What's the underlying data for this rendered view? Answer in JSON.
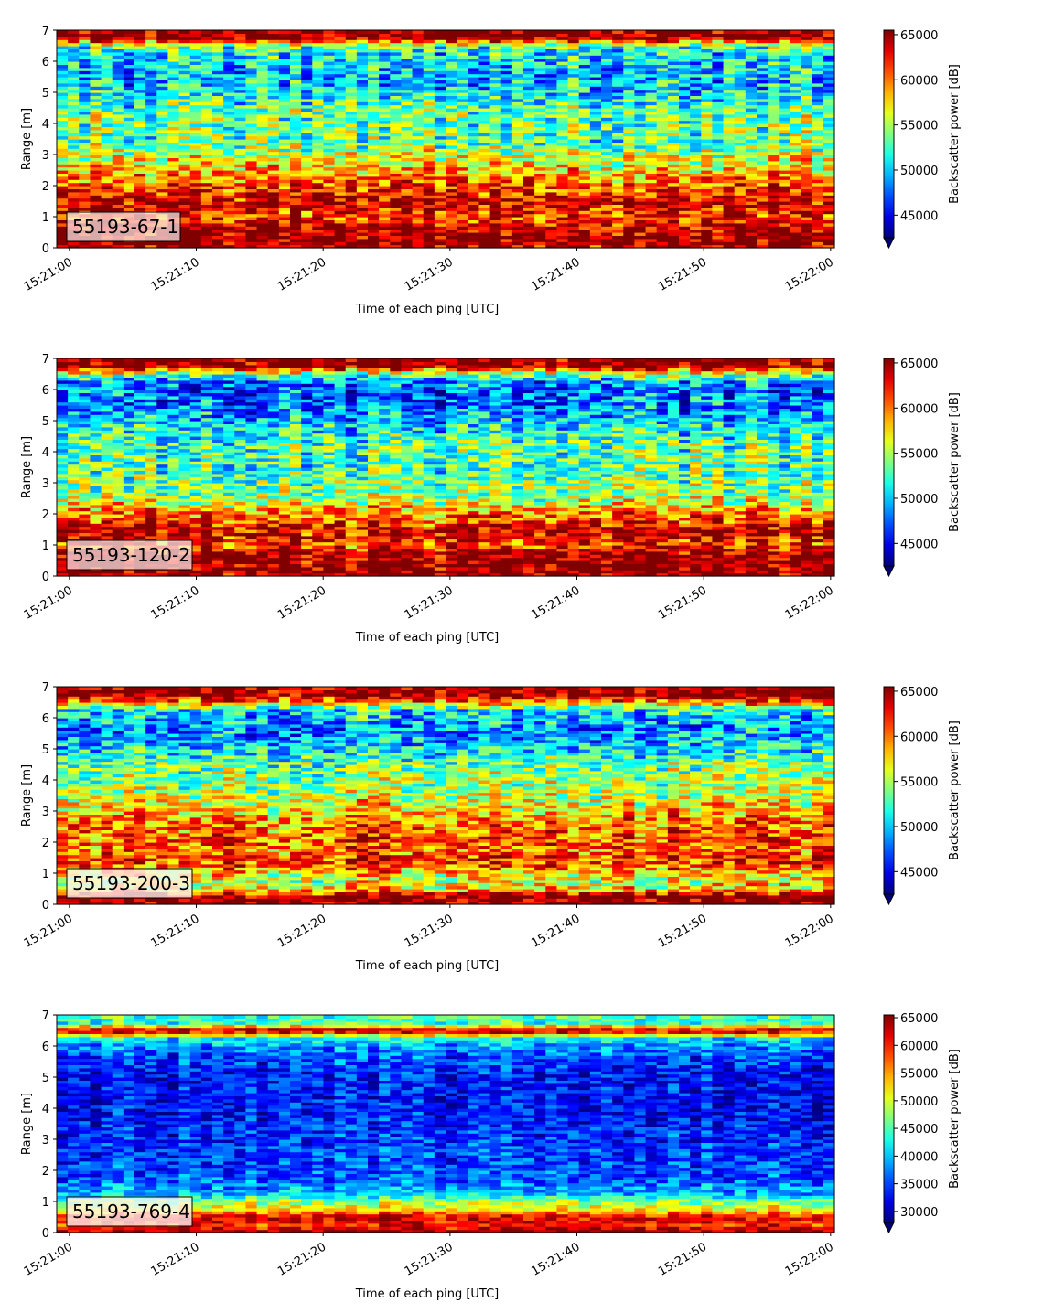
{
  "chart_data": [
    {
      "type": "heatmap",
      "sample_label": "55193-67-1",
      "xlabel": "Time of each ping [UTC]",
      "ylabel": "Range [m]",
      "xticks": [
        "15:21:00",
        "15:21:10",
        "15:21:20",
        "15:21:30",
        "15:21:40",
        "15:21:50",
        "15:22:00"
      ],
      "yticks": [
        0,
        1,
        2,
        3,
        4,
        5,
        6,
        7
      ],
      "ylim": [
        0,
        7
      ],
      "xlim_seconds": [
        -1,
        60.3
      ],
      "colorbar_label": "Backscatter power [dB]",
      "colorbar_ticks": [
        45000,
        50000,
        55000,
        60000,
        65000
      ],
      "colorbar_range": [
        42500,
        65500
      ],
      "profile_range_m": [
        0.0,
        0.25,
        0.5,
        0.75,
        1.0,
        1.25,
        1.5,
        1.75,
        2.0,
        2.25,
        2.5,
        2.75,
        3.0,
        3.25,
        3.5,
        3.75,
        4.0,
        4.25,
        4.5,
        4.75,
        5.0,
        5.25,
        5.5,
        5.75,
        6.0,
        6.25,
        6.5,
        6.75,
        7.0
      ],
      "mean_profile": [
        64000,
        65500,
        65000,
        64000,
        61000,
        63000,
        64000,
        62000,
        61000,
        60000,
        58000,
        57000,
        56000,
        54000,
        53000,
        54000,
        53000,
        54000,
        53000,
        52000,
        51000,
        50000,
        50000,
        50000,
        51000,
        51000,
        53000,
        65500,
        65500
      ]
    },
    {
      "type": "heatmap",
      "sample_label": "55193-120-2",
      "xlabel": "Time of each ping [UTC]",
      "ylabel": "Range [m]",
      "xticks": [
        "15:21:00",
        "15:21:10",
        "15:21:20",
        "15:21:30",
        "15:21:40",
        "15:21:50",
        "15:22:00"
      ],
      "yticks": [
        0,
        1,
        2,
        3,
        4,
        5,
        6,
        7
      ],
      "ylim": [
        0,
        7
      ],
      "xlim_seconds": [
        -1,
        60.3
      ],
      "colorbar_label": "Backscatter power [dB]",
      "colorbar_ticks": [
        45000,
        50000,
        55000,
        60000,
        65000
      ],
      "colorbar_range": [
        42500,
        65500
      ],
      "profile_range_m": [
        0.0,
        0.25,
        0.5,
        0.75,
        1.0,
        1.25,
        1.5,
        1.75,
        2.0,
        2.25,
        2.5,
        2.75,
        3.0,
        3.25,
        3.5,
        3.75,
        4.0,
        4.25,
        4.5,
        4.75,
        5.0,
        5.25,
        5.5,
        5.75,
        6.0,
        6.25,
        6.5,
        6.75,
        7.0
      ],
      "mean_profile": [
        65500,
        65500,
        65500,
        65000,
        61000,
        63000,
        64000,
        61000,
        60000,
        58000,
        55000,
        54000,
        54000,
        53000,
        53000,
        53000,
        53000,
        53000,
        52000,
        51000,
        50000,
        49000,
        48000,
        48000,
        48000,
        49000,
        54000,
        65500,
        65500
      ]
    },
    {
      "type": "heatmap",
      "sample_label": "55193-200-3",
      "xlabel": "Time of each ping [UTC]",
      "ylabel": "Range [m]",
      "xticks": [
        "15:21:00",
        "15:21:10",
        "15:21:20",
        "15:21:30",
        "15:21:40",
        "15:21:50",
        "15:22:00"
      ],
      "yticks": [
        0,
        1,
        2,
        3,
        4,
        5,
        6,
        7
      ],
      "ylim": [
        0,
        7
      ],
      "xlim_seconds": [
        -1,
        60.3
      ],
      "colorbar_label": "Backscatter power [dB]",
      "colorbar_ticks": [
        45000,
        50000,
        55000,
        60000,
        65000
      ],
      "colorbar_range": [
        42500,
        65500
      ],
      "profile_range_m": [
        0.0,
        0.25,
        0.5,
        0.75,
        1.0,
        1.25,
        1.5,
        1.75,
        2.0,
        2.25,
        2.5,
        2.75,
        3.0,
        3.25,
        3.5,
        3.75,
        4.0,
        4.25,
        4.5,
        4.75,
        5.0,
        5.25,
        5.5,
        5.75,
        6.0,
        6.25,
        6.5,
        6.75,
        7.0
      ],
      "mean_profile": [
        65500,
        65500,
        58000,
        56000,
        58000,
        61000,
        62000,
        60000,
        61000,
        61000,
        60000,
        60000,
        58000,
        57000,
        56000,
        55000,
        55000,
        54000,
        54000,
        52000,
        51000,
        50000,
        49000,
        49000,
        50000,
        51000,
        60000,
        65500,
        65500
      ]
    },
    {
      "type": "heatmap",
      "sample_label": "55193-769-4",
      "xlabel": "Time of each ping [UTC]",
      "ylabel": "Range [m]",
      "xticks": [
        "15:21:00",
        "15:21:10",
        "15:21:20",
        "15:21:30",
        "15:21:40",
        "15:21:50",
        "15:22:00"
      ],
      "yticks": [
        0,
        1,
        2,
        3,
        4,
        5,
        6,
        7
      ],
      "ylim": [
        0,
        7
      ],
      "xlim_seconds": [
        -1,
        60.3
      ],
      "colorbar_label": "Backscatter power [dB]",
      "colorbar_ticks": [
        30000,
        35000,
        40000,
        45000,
        50000,
        55000,
        60000,
        65000
      ],
      "colorbar_range": [
        28000,
        65500
      ],
      "profile_range_m": [
        0.0,
        0.25,
        0.5,
        0.75,
        1.0,
        1.25,
        1.5,
        1.75,
        2.0,
        2.25,
        2.5,
        2.75,
        3.0,
        3.25,
        3.5,
        3.75,
        4.0,
        4.25,
        4.5,
        4.75,
        5.0,
        5.25,
        5.5,
        5.75,
        6.0,
        6.25,
        6.5,
        6.75,
        7.0
      ],
      "mean_profile": [
        65500,
        60000,
        62000,
        52000,
        48000,
        40000,
        38000,
        36000,
        36000,
        35000,
        35000,
        35000,
        34000,
        34000,
        34000,
        33000,
        33000,
        33000,
        33000,
        33000,
        33000,
        34000,
        35000,
        36000,
        38000,
        42000,
        65500,
        44000,
        45000
      ]
    }
  ]
}
